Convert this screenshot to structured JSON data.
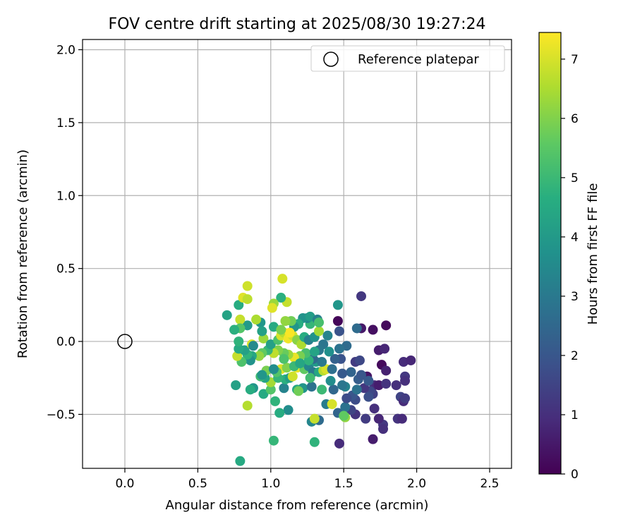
{
  "chart_data": {
    "type": "scatter",
    "title": "FOV centre drift starting at 2025/08/30 19:27:24",
    "xlabel": "Angular distance from reference (arcmin)",
    "ylabel": "Rotation from reference (arcmin)",
    "xlim": [
      -0.29,
      2.65
    ],
    "ylim": [
      -0.87,
      2.07
    ],
    "xticks": [
      0.0,
      0.5,
      1.0,
      1.5,
      2.0,
      2.5
    ],
    "xtick_labels": [
      "0.0",
      "0.5",
      "1.0",
      "1.5",
      "2.0",
      "2.5"
    ],
    "yticks": [
      -0.5,
      0.0,
      0.5,
      1.0,
      1.5,
      2.0
    ],
    "ytick_labels": [
      "−0.5",
      "0.0",
      "0.5",
      "1.0",
      "1.5",
      "2.0"
    ],
    "grid": true,
    "legend": {
      "position": "top-right",
      "entries": [
        "Reference platepar"
      ]
    },
    "reference_point": {
      "x": 0.0,
      "y": 0.0,
      "label": "Reference platepar"
    },
    "colorbar": {
      "label": "Hours from first FF file",
      "min": 0,
      "max": 7.45,
      "ticks": [
        0,
        1,
        2,
        3,
        4,
        5,
        6,
        7
      ],
      "tick_labels": [
        "0",
        "1",
        "2",
        "3",
        "4",
        "5",
        "6",
        "7"
      ]
    },
    "points": [
      {
        "x": 1.46,
        "y": 0.14,
        "h": 0.1
      },
      {
        "x": 1.79,
        "y": 0.11,
        "h": 0.2
      },
      {
        "x": 1.7,
        "y": 0.08,
        "h": 0.3
      },
      {
        "x": 1.62,
        "y": 0.09,
        "h": 0.5
      },
      {
        "x": 1.76,
        "y": -0.16,
        "h": 0.2
      },
      {
        "x": 1.74,
        "y": -0.06,
        "h": 0.6
      },
      {
        "x": 1.78,
        "y": -0.05,
        "h": 0.8
      },
      {
        "x": 1.79,
        "y": -0.2,
        "h": 0.7
      },
      {
        "x": 1.66,
        "y": -0.24,
        "h": 0.4
      },
      {
        "x": 1.71,
        "y": -0.3,
        "h": 0.9
      },
      {
        "x": 1.74,
        "y": -0.3,
        "h": 0.6
      },
      {
        "x": 1.79,
        "y": -0.29,
        "h": 1.1
      },
      {
        "x": 1.86,
        "y": -0.3,
        "h": 1.0
      },
      {
        "x": 1.91,
        "y": -0.14,
        "h": 0.9
      },
      {
        "x": 1.96,
        "y": -0.13,
        "h": 0.8
      },
      {
        "x": 1.92,
        "y": -0.24,
        "h": 1.2
      },
      {
        "x": 1.92,
        "y": -0.27,
        "h": 1.0
      },
      {
        "x": 1.89,
        "y": -0.38,
        "h": 1.5
      },
      {
        "x": 1.91,
        "y": -0.41,
        "h": 0.9
      },
      {
        "x": 1.92,
        "y": -0.39,
        "h": 1.3
      },
      {
        "x": 1.87,
        "y": -0.53,
        "h": 1.1
      },
      {
        "x": 1.9,
        "y": -0.53,
        "h": 0.9
      },
      {
        "x": 1.77,
        "y": -0.57,
        "h": 1.2
      },
      {
        "x": 1.77,
        "y": -0.6,
        "h": 1.0
      },
      {
        "x": 1.74,
        "y": -0.53,
        "h": 0.8
      },
      {
        "x": 1.7,
        "y": -0.67,
        "h": 0.6
      },
      {
        "x": 1.71,
        "y": -0.46,
        "h": 1.0
      },
      {
        "x": 1.7,
        "y": -0.36,
        "h": 1.4
      },
      {
        "x": 1.68,
        "y": -0.34,
        "h": 1.6
      },
      {
        "x": 1.64,
        "y": -0.32,
        "h": 1.2
      },
      {
        "x": 1.67,
        "y": -0.38,
        "h": 1.8
      },
      {
        "x": 1.65,
        "y": -0.53,
        "h": 1.3
      },
      {
        "x": 1.58,
        "y": -0.5,
        "h": 1.1
      },
      {
        "x": 1.55,
        "y": -0.47,
        "h": 1.5
      },
      {
        "x": 1.58,
        "y": -0.4,
        "h": 1.7
      },
      {
        "x": 1.56,
        "y": -0.37,
        "h": 2.0
      },
      {
        "x": 1.6,
        "y": -0.26,
        "h": 2.2
      },
      {
        "x": 1.62,
        "y": -0.23,
        "h": 2.0
      },
      {
        "x": 1.55,
        "y": -0.21,
        "h": 2.4
      },
      {
        "x": 1.58,
        "y": -0.14,
        "h": 1.3
      },
      {
        "x": 1.61,
        "y": -0.13,
        "h": 1.6
      },
      {
        "x": 1.48,
        "y": -0.12,
        "h": 1.9
      },
      {
        "x": 1.44,
        "y": -0.12,
        "h": 2.3
      },
      {
        "x": 1.52,
        "y": -0.03,
        "h": 2.6
      },
      {
        "x": 1.47,
        "y": -0.05,
        "h": 2.8
      },
      {
        "x": 1.47,
        "y": 0.07,
        "h": 1.9
      },
      {
        "x": 1.59,
        "y": 0.09,
        "h": 2.6
      },
      {
        "x": 1.62,
        "y": 0.31,
        "h": 1.2
      },
      {
        "x": 1.46,
        "y": 0.25,
        "h": 3.9
      },
      {
        "x": 1.47,
        "y": -0.7,
        "h": 0.9
      },
      {
        "x": 1.46,
        "y": -0.49,
        "h": 2.4
      },
      {
        "x": 1.51,
        "y": -0.45,
        "h": 2.8
      },
      {
        "x": 1.51,
        "y": -0.31,
        "h": 3.3
      },
      {
        "x": 1.49,
        "y": -0.3,
        "h": 2.9
      },
      {
        "x": 1.49,
        "y": -0.22,
        "h": 2.1
      },
      {
        "x": 1.43,
        "y": -0.33,
        "h": 2.5
      },
      {
        "x": 1.38,
        "y": -0.43,
        "h": 3.1
      },
      {
        "x": 1.42,
        "y": -0.43,
        "h": 7.0
      },
      {
        "x": 1.51,
        "y": -0.52,
        "h": 6.2
      },
      {
        "x": 1.5,
        "y": -0.51,
        "h": 5.6
      },
      {
        "x": 1.33,
        "y": -0.54,
        "h": 2.6
      },
      {
        "x": 1.28,
        "y": -0.55,
        "h": 3.4
      },
      {
        "x": 1.3,
        "y": -0.53,
        "h": 6.8
      },
      {
        "x": 1.3,
        "y": -0.69,
        "h": 4.8
      },
      {
        "x": 1.02,
        "y": -0.68,
        "h": 4.9
      },
      {
        "x": 0.79,
        "y": -0.82,
        "h": 4.5
      },
      {
        "x": 1.12,
        "y": -0.47,
        "h": 3.6
      },
      {
        "x": 1.06,
        "y": -0.49,
        "h": 4.6
      },
      {
        "x": 1.03,
        "y": -0.41,
        "h": 4.8
      },
      {
        "x": 0.84,
        "y": -0.44,
        "h": 6.6
      },
      {
        "x": 0.95,
        "y": -0.36,
        "h": 4.5
      },
      {
        "x": 0.88,
        "y": -0.32,
        "h": 3.9
      },
      {
        "x": 0.86,
        "y": -0.33,
        "h": 4.6
      },
      {
        "x": 0.76,
        "y": -0.3,
        "h": 4.2
      },
      {
        "x": 1.0,
        "y": -0.33,
        "h": 5.4
      },
      {
        "x": 1.0,
        "y": -0.28,
        "h": 6.4
      },
      {
        "x": 1.09,
        "y": -0.32,
        "h": 3.3
      },
      {
        "x": 1.18,
        "y": -0.33,
        "h": 4.5
      },
      {
        "x": 1.22,
        "y": -0.32,
        "h": 3.9
      },
      {
        "x": 1.28,
        "y": -0.31,
        "h": 2.8
      },
      {
        "x": 1.35,
        "y": -0.33,
        "h": 5.0
      },
      {
        "x": 1.19,
        "y": -0.34,
        "h": 5.8
      },
      {
        "x": 1.1,
        "y": -0.26,
        "h": 4.7
      },
      {
        "x": 1.13,
        "y": -0.25,
        "h": 4.1
      },
      {
        "x": 1.15,
        "y": -0.24,
        "h": 6.9
      },
      {
        "x": 1.05,
        "y": -0.25,
        "h": 4.9
      },
      {
        "x": 0.96,
        "y": -0.25,
        "h": 4.3
      },
      {
        "x": 0.93,
        "y": -0.24,
        "h": 5.1
      },
      {
        "x": 0.97,
        "y": -0.2,
        "h": 5.9
      },
      {
        "x": 0.94,
        "y": -0.23,
        "h": 3.9
      },
      {
        "x": 1.07,
        "y": -0.19,
        "h": 7.1
      },
      {
        "x": 1.04,
        "y": -0.21,
        "h": 5.4
      },
      {
        "x": 1.02,
        "y": -0.19,
        "h": 3.6
      },
      {
        "x": 1.11,
        "y": -0.18,
        "h": 6.0
      },
      {
        "x": 1.18,
        "y": -0.18,
        "h": 7.2
      },
      {
        "x": 1.23,
        "y": -0.19,
        "h": 5.6
      },
      {
        "x": 1.26,
        "y": -0.17,
        "h": 3.4
      },
      {
        "x": 1.29,
        "y": -0.21,
        "h": 3.0
      },
      {
        "x": 1.33,
        "y": -0.21,
        "h": 4.4
      },
      {
        "x": 1.36,
        "y": -0.2,
        "h": 6.6
      },
      {
        "x": 1.38,
        "y": -0.19,
        "h": 7.0
      },
      {
        "x": 1.42,
        "y": -0.19,
        "h": 2.7
      },
      {
        "x": 1.31,
        "y": -0.14,
        "h": 4.0
      },
      {
        "x": 1.35,
        "y": -0.14,
        "h": 3.0
      },
      {
        "x": 1.29,
        "y": -0.12,
        "h": 2.6
      },
      {
        "x": 1.26,
        "y": -0.13,
        "h": 4.8
      },
      {
        "x": 1.24,
        "y": -0.08,
        "h": 5.2
      },
      {
        "x": 1.2,
        "y": -0.1,
        "h": 5.9
      },
      {
        "x": 1.16,
        "y": -0.11,
        "h": 7.2
      },
      {
        "x": 1.12,
        "y": -0.09,
        "h": 6.3
      },
      {
        "x": 1.09,
        "y": -0.08,
        "h": 5.7
      },
      {
        "x": 1.05,
        "y": -0.06,
        "h": 6.0
      },
      {
        "x": 1.02,
        "y": -0.08,
        "h": 6.7
      },
      {
        "x": 0.98,
        "y": -0.06,
        "h": 4.9
      },
      {
        "x": 0.94,
        "y": -0.08,
        "h": 5.6
      },
      {
        "x": 0.92,
        "y": -0.1,
        "h": 6.2
      },
      {
        "x": 0.87,
        "y": -0.1,
        "h": 4.4
      },
      {
        "x": 0.86,
        "y": -0.13,
        "h": 3.8
      },
      {
        "x": 0.84,
        "y": -0.09,
        "h": 4.8
      },
      {
        "x": 0.8,
        "y": -0.14,
        "h": 5.3
      },
      {
        "x": 0.77,
        "y": -0.1,
        "h": 6.8
      },
      {
        "x": 0.82,
        "y": -0.06,
        "h": 4.2
      },
      {
        "x": 0.78,
        "y": -0.05,
        "h": 4.5
      },
      {
        "x": 0.78,
        "y": 0.0,
        "h": 4.8
      },
      {
        "x": 0.87,
        "y": -0.02,
        "h": 7.0
      },
      {
        "x": 0.88,
        "y": -0.03,
        "h": 3.5
      },
      {
        "x": 0.95,
        "y": 0.02,
        "h": 6.3
      },
      {
        "x": 1.0,
        "y": -0.02,
        "h": 4.2
      },
      {
        "x": 1.05,
        "y": 0.01,
        "h": 5.3
      },
      {
        "x": 1.07,
        "y": 0.04,
        "h": 7.0
      },
      {
        "x": 1.09,
        "y": 0.06,
        "h": 6.6
      },
      {
        "x": 1.12,
        "y": 0.02,
        "h": 7.3
      },
      {
        "x": 1.15,
        "y": 0.04,
        "h": 6.9
      },
      {
        "x": 1.18,
        "y": 0.01,
        "h": 6.1
      },
      {
        "x": 1.21,
        "y": -0.02,
        "h": 6.5
      },
      {
        "x": 1.23,
        "y": 0.03,
        "h": 4.6
      },
      {
        "x": 1.26,
        "y": 0.01,
        "h": 3.2
      },
      {
        "x": 1.3,
        "y": 0.03,
        "h": 3.8
      },
      {
        "x": 1.33,
        "y": 0.07,
        "h": 6.4
      },
      {
        "x": 1.36,
        "y": -0.02,
        "h": 2.9
      },
      {
        "x": 1.39,
        "y": 0.04,
        "h": 3.3
      },
      {
        "x": 1.4,
        "y": -0.07,
        "h": 3.7
      },
      {
        "x": 1.33,
        "y": -0.06,
        "h": 3.0
      },
      {
        "x": 1.3,
        "y": -0.07,
        "h": 4.3
      },
      {
        "x": 1.27,
        "y": 0.12,
        "h": 4.9
      },
      {
        "x": 1.25,
        "y": 0.16,
        "h": 3.4
      },
      {
        "x": 1.22,
        "y": 0.16,
        "h": 3.8
      },
      {
        "x": 1.27,
        "y": 0.17,
        "h": 4.1
      },
      {
        "x": 1.32,
        "y": 0.15,
        "h": 3.2
      },
      {
        "x": 1.33,
        "y": 0.13,
        "h": 5.2
      },
      {
        "x": 1.19,
        "y": 0.12,
        "h": 4.6
      },
      {
        "x": 1.16,
        "y": 0.1,
        "h": 3.9
      },
      {
        "x": 1.14,
        "y": 0.14,
        "h": 5.8
      },
      {
        "x": 1.1,
        "y": 0.14,
        "h": 6.2
      },
      {
        "x": 1.11,
        "y": 0.27,
        "h": 6.8
      },
      {
        "x": 1.08,
        "y": 0.43,
        "h": 7.0
      },
      {
        "x": 1.07,
        "y": 0.3,
        "h": 4.7
      },
      {
        "x": 1.02,
        "y": 0.26,
        "h": 6.3
      },
      {
        "x": 1.01,
        "y": 0.23,
        "h": 7.1
      },
      {
        "x": 1.02,
        "y": 0.1,
        "h": 4.5
      },
      {
        "x": 0.93,
        "y": 0.13,
        "h": 3.9
      },
      {
        "x": 0.9,
        "y": 0.15,
        "h": 6.5
      },
      {
        "x": 0.94,
        "y": 0.07,
        "h": 4.2
      },
      {
        "x": 0.84,
        "y": 0.11,
        "h": 4.0
      },
      {
        "x": 0.79,
        "y": 0.15,
        "h": 6.8
      },
      {
        "x": 0.79,
        "y": 0.09,
        "h": 5.4
      },
      {
        "x": 0.75,
        "y": 0.08,
        "h": 4.7
      },
      {
        "x": 0.7,
        "y": 0.18,
        "h": 4.3
      },
      {
        "x": 0.78,
        "y": 0.25,
        "h": 4.6
      },
      {
        "x": 0.81,
        "y": 0.3,
        "h": 7.1
      },
      {
        "x": 0.84,
        "y": 0.38,
        "h": 6.9
      },
      {
        "x": 0.84,
        "y": 0.29,
        "h": 6.7
      },
      {
        "x": 1.16,
        "y": -0.17,
        "h": 5.0
      },
      {
        "x": 1.2,
        "y": -0.15,
        "h": 4.4
      },
      {
        "x": 1.09,
        "y": -0.12,
        "h": 5.3
      },
      {
        "x": 1.13,
        "y": 0.06,
        "h": 7.4
      },
      {
        "x": 1.07,
        "y": 0.08,
        "h": 5.9
      },
      {
        "x": 1.27,
        "y": -0.25,
        "h": 5.1
      },
      {
        "x": 1.41,
        "y": -0.27,
        "h": 3.6
      },
      {
        "x": 1.59,
        "y": -0.33,
        "h": 2.8
      },
      {
        "x": 1.52,
        "y": -0.39,
        "h": 1.7
      },
      {
        "x": 1.67,
        "y": -0.27,
        "h": 2.1
      }
    ]
  }
}
